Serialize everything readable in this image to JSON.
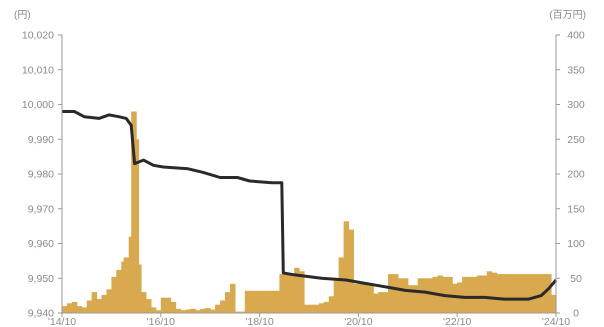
{
  "chart_data": {
    "type": "bar+line",
    "title": "",
    "left_axis": {
      "unit_label": "(円)",
      "range": [
        9940,
        10020
      ],
      "ticks": [
        "9,940",
        "9,950",
        "9,960",
        "9,970",
        "9,980",
        "9,990",
        "10,000",
        "10,010",
        "10,020"
      ],
      "tick_values": [
        9940,
        9950,
        9960,
        9970,
        9980,
        9990,
        10000,
        10010,
        10020
      ]
    },
    "right_axis": {
      "unit_label": "(百万円)",
      "range": [
        0,
        400
      ],
      "ticks": [
        "0",
        "50",
        "100",
        "150",
        "200",
        "250",
        "300",
        "350",
        "400"
      ],
      "tick_values": [
        0,
        50,
        100,
        150,
        200,
        250,
        300,
        350,
        400
      ]
    },
    "x_axis": {
      "range": [
        2014.75,
        2024.75
      ],
      "ticks": [
        "'14/10",
        "'16/10",
        "'18/10",
        "'20/10",
        "'22/10",
        "'24/10"
      ],
      "tick_values": [
        2014.75,
        2016.75,
        2018.75,
        2020.75,
        2022.75,
        2024.75
      ]
    },
    "colors": {
      "line": "#2a2a2a",
      "bars": "#d9a94f",
      "axis": "#9a9a9a"
    },
    "series": [
      {
        "kind": "line",
        "axis": "left",
        "points": [
          [
            2014.75,
            9998
          ],
          [
            2015.0,
            9998
          ],
          [
            2015.2,
            9996.5
          ],
          [
            2015.5,
            9996
          ],
          [
            2015.7,
            9997
          ],
          [
            2015.9,
            9996.5
          ],
          [
            2016.05,
            9996
          ],
          [
            2016.15,
            9994
          ],
          [
            2016.22,
            9983
          ],
          [
            2016.4,
            9984
          ],
          [
            2016.6,
            9982.5
          ],
          [
            2016.8,
            9982
          ],
          [
            2017.3,
            9981.5
          ],
          [
            2017.6,
            9980.5
          ],
          [
            2017.95,
            9979
          ],
          [
            2018.3,
            9979
          ],
          [
            2018.55,
            9978
          ],
          [
            2019.0,
            9977.5
          ],
          [
            2019.2,
            9977.5
          ],
          [
            2019.23,
            9951.5
          ],
          [
            2019.45,
            9951
          ],
          [
            2020.0,
            9950
          ],
          [
            2020.5,
            9949.5
          ],
          [
            2020.9,
            9948.5
          ],
          [
            2021.3,
            9947.5
          ],
          [
            2021.7,
            9946.5
          ],
          [
            2022.1,
            9946
          ],
          [
            2022.5,
            9945
          ],
          [
            2022.9,
            9944.5
          ],
          [
            2023.3,
            9944.5
          ],
          [
            2023.7,
            9944
          ],
          [
            2024.2,
            9944
          ],
          [
            2024.45,
            9945
          ],
          [
            2024.6,
            9947
          ],
          [
            2024.75,
            9949.5
          ]
        ]
      },
      {
        "kind": "bar",
        "axis": "right",
        "points": [
          [
            2014.8,
            10
          ],
          [
            2014.9,
            14
          ],
          [
            2015.0,
            16
          ],
          [
            2015.1,
            10
          ],
          [
            2015.2,
            8
          ],
          [
            2015.3,
            18
          ],
          [
            2015.4,
            30
          ],
          [
            2015.5,
            20
          ],
          [
            2015.6,
            26
          ],
          [
            2015.7,
            34
          ],
          [
            2015.8,
            52
          ],
          [
            2015.9,
            62
          ],
          [
            2016.0,
            74
          ],
          [
            2016.05,
            80
          ],
          [
            2016.1,
            60
          ],
          [
            2016.15,
            110
          ],
          [
            2016.2,
            290
          ],
          [
            2016.25,
            250
          ],
          [
            2016.3,
            70
          ],
          [
            2016.4,
            30
          ],
          [
            2016.5,
            20
          ],
          [
            2016.6,
            8
          ],
          [
            2016.7,
            4
          ],
          [
            2016.8,
            22
          ],
          [
            2016.9,
            22
          ],
          [
            2017.0,
            16
          ],
          [
            2017.1,
            6
          ],
          [
            2017.2,
            4
          ],
          [
            2017.3,
            5
          ],
          [
            2017.4,
            6
          ],
          [
            2017.5,
            4
          ],
          [
            2017.6,
            6
          ],
          [
            2017.7,
            7
          ],
          [
            2017.8,
            5
          ],
          [
            2017.9,
            12
          ],
          [
            2018.0,
            18
          ],
          [
            2018.1,
            30
          ],
          [
            2018.2,
            42
          ],
          [
            2018.3,
            2
          ],
          [
            2018.4,
            2
          ],
          [
            2018.5,
            32
          ],
          [
            2018.6,
            32
          ],
          [
            2018.7,
            32
          ],
          [
            2018.8,
            32
          ],
          [
            2018.9,
            32
          ],
          [
            2019.0,
            32
          ],
          [
            2019.1,
            32
          ],
          [
            2019.2,
            56
          ],
          [
            2019.3,
            56
          ],
          [
            2019.4,
            56
          ],
          [
            2019.5,
            65
          ],
          [
            2019.6,
            60
          ],
          [
            2019.7,
            12
          ],
          [
            2019.8,
            12
          ],
          [
            2019.9,
            12
          ],
          [
            2020.0,
            14
          ],
          [
            2020.1,
            16
          ],
          [
            2020.2,
            24
          ],
          [
            2020.3,
            50
          ],
          [
            2020.4,
            80
          ],
          [
            2020.5,
            132
          ],
          [
            2020.6,
            120
          ],
          [
            2020.7,
            42
          ],
          [
            2020.8,
            42
          ],
          [
            2020.9,
            42
          ],
          [
            2021.0,
            42
          ],
          [
            2021.1,
            28
          ],
          [
            2021.2,
            30
          ],
          [
            2021.3,
            30
          ],
          [
            2021.4,
            56
          ],
          [
            2021.5,
            56
          ],
          [
            2021.6,
            50
          ],
          [
            2021.7,
            50
          ],
          [
            2021.8,
            40
          ],
          [
            2021.9,
            40
          ],
          [
            2022.0,
            50
          ],
          [
            2022.1,
            50
          ],
          [
            2022.2,
            50
          ],
          [
            2022.3,
            52
          ],
          [
            2022.4,
            54
          ],
          [
            2022.5,
            52
          ],
          [
            2022.6,
            52
          ],
          [
            2022.7,
            42
          ],
          [
            2022.8,
            44
          ],
          [
            2022.9,
            52
          ],
          [
            2023.0,
            52
          ],
          [
            2023.1,
            52
          ],
          [
            2023.2,
            54
          ],
          [
            2023.3,
            54
          ],
          [
            2023.4,
            60
          ],
          [
            2023.5,
            58
          ],
          [
            2023.6,
            56
          ],
          [
            2023.7,
            56
          ],
          [
            2023.8,
            56
          ],
          [
            2023.9,
            56
          ],
          [
            2024.0,
            56
          ],
          [
            2024.1,
            56
          ],
          [
            2024.2,
            56
          ],
          [
            2024.3,
            56
          ],
          [
            2024.4,
            56
          ],
          [
            2024.5,
            56
          ],
          [
            2024.6,
            56
          ],
          [
            2024.7,
            26
          ]
        ]
      }
    ]
  }
}
